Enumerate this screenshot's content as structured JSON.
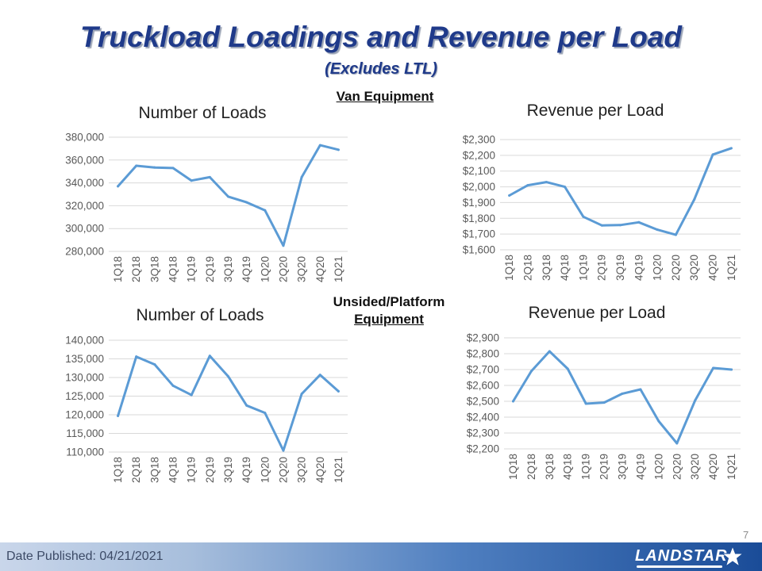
{
  "header": {
    "title": "Truckload Loadings and Revenue per Load",
    "subtitle": "(Excludes LTL)"
  },
  "sections": {
    "van": "Van Equipment",
    "unsided_line1": "Unsided/Platform",
    "unsided_line2": "Equipment"
  },
  "footer": {
    "date": "Date Published:  04/21/2021",
    "page_number": "7",
    "logo_text": "LANDSTAR"
  },
  "colors": {
    "line": "#5b9bd5",
    "title": "#1f3a8a",
    "grid": "#d9d9d9"
  },
  "chart_data": [
    {
      "id": "van-loads",
      "type": "line",
      "title": "Number of Loads",
      "categories": [
        "1Q18",
        "2Q18",
        "3Q18",
        "4Q18",
        "1Q19",
        "2Q19",
        "3Q19",
        "4Q19",
        "1Q20",
        "2Q20",
        "3Q20",
        "4Q20",
        "1Q21"
      ],
      "values": [
        337000,
        355000,
        353500,
        353000,
        342000,
        345000,
        328000,
        323000,
        316000,
        285000,
        345000,
        373000,
        369000
      ],
      "ylim": [
        280000,
        380000
      ],
      "yticks": [
        280000,
        300000,
        320000,
        340000,
        360000,
        380000
      ],
      "ytick_labels": [
        "280,000",
        "300,000",
        "320,000",
        "340,000",
        "360,000",
        "380,000"
      ],
      "grid": true
    },
    {
      "id": "van-revenue",
      "type": "line",
      "title": "Revenue per Load",
      "categories": [
        "1Q18",
        "2Q18",
        "3Q18",
        "4Q18",
        "1Q19",
        "2Q19",
        "3Q19",
        "4Q19",
        "1Q20",
        "2Q20",
        "3Q20",
        "4Q20",
        "1Q21"
      ],
      "values": [
        1945,
        2010,
        2030,
        2000,
        1810,
        1755,
        1757,
        1775,
        1728,
        1695,
        1920,
        2205,
        2245
      ],
      "ylim": [
        1600,
        2300
      ],
      "yticks": [
        1600,
        1700,
        1800,
        1900,
        2000,
        2100,
        2200,
        2300
      ],
      "ytick_labels": [
        "$1,600",
        "$1,700",
        "$1,800",
        "$1,900",
        "$2,000",
        "$2,100",
        "$2,200",
        "$2,300"
      ],
      "grid": true
    },
    {
      "id": "platform-loads",
      "type": "line",
      "title": "Number of Loads",
      "categories": [
        "1Q18",
        "2Q18",
        "3Q18",
        "4Q18",
        "1Q19",
        "2Q19",
        "3Q19",
        "4Q19",
        "1Q20",
        "2Q20",
        "3Q20",
        "4Q20",
        "1Q21"
      ],
      "values": [
        119700,
        135600,
        133500,
        127800,
        125300,
        135800,
        130300,
        122500,
        120500,
        110400,
        125600,
        130700,
        126300
      ],
      "ylim": [
        110000,
        140000
      ],
      "yticks": [
        110000,
        115000,
        120000,
        125000,
        130000,
        135000,
        140000
      ],
      "ytick_labels": [
        "110,000",
        "115,000",
        "120,000",
        "125,000",
        "130,000",
        "135,000",
        "140,000"
      ],
      "grid": true
    },
    {
      "id": "platform-revenue",
      "type": "line",
      "title": "Revenue per Load",
      "categories": [
        "1Q18",
        "2Q18",
        "3Q18",
        "4Q18",
        "1Q19",
        "2Q19",
        "3Q19",
        "4Q19",
        "1Q20",
        "2Q20",
        "3Q20",
        "4Q20",
        "1Q21"
      ],
      "values": [
        2500,
        2690,
        2815,
        2705,
        2485,
        2492,
        2548,
        2575,
        2375,
        2235,
        2505,
        2710,
        2700
      ],
      "ylim": [
        2200,
        2900
      ],
      "yticks": [
        2200,
        2300,
        2400,
        2500,
        2600,
        2700,
        2800,
        2900
      ],
      "ytick_labels": [
        "$2,200",
        "$2,300",
        "$2,400",
        "$2,500",
        "$2,600",
        "$2,700",
        "$2,800",
        "$2,900"
      ],
      "grid": true
    }
  ]
}
